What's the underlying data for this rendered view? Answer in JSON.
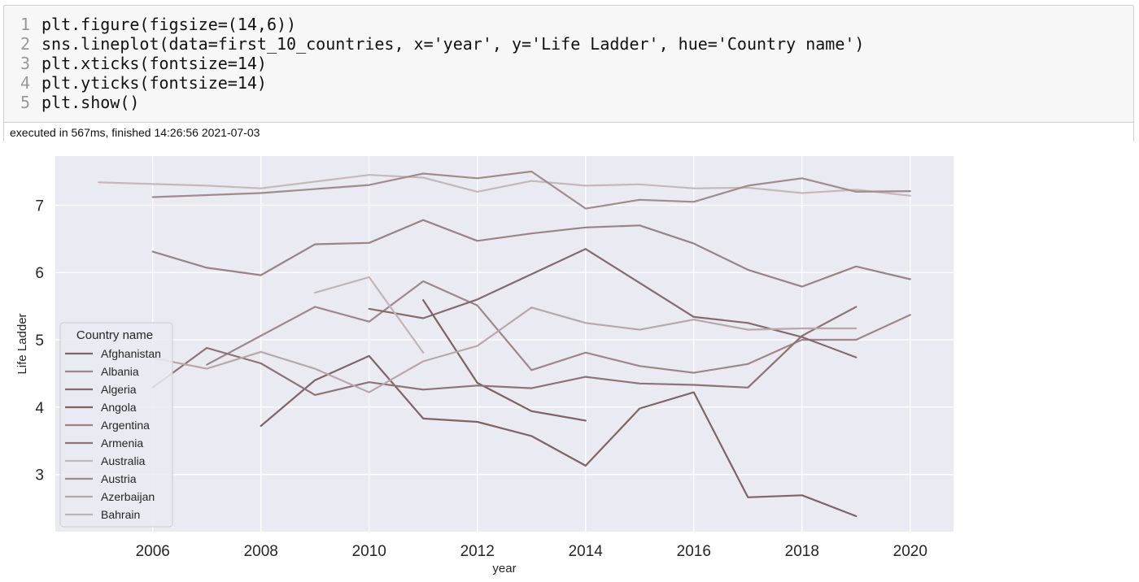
{
  "cell": {
    "code_lines": [
      {
        "num": "1",
        "text": "plt.figure(figsize=(14,6))"
      },
      {
        "num": "2",
        "text": "sns.lineplot(data=first_10_countries, x='year', y='Life Ladder', hue='Country name')"
      },
      {
        "num": "3",
        "text": "plt.xticks(fontsize=14)"
      },
      {
        "num": "4",
        "text": "plt.yticks(fontsize=14)"
      },
      {
        "num": "5",
        "text": "plt.show()"
      }
    ],
    "status": "executed in 567ms, finished 14:26:56 2021-07-03"
  },
  "chart_data": {
    "type": "line",
    "title": "",
    "xlabel": "year",
    "ylabel": "Life Ladder",
    "xlim": [
      2004.2,
      2020.8
    ],
    "ylim": [
      2.15,
      7.73
    ],
    "xticks": [
      2006,
      2008,
      2010,
      2012,
      2014,
      2016,
      2018,
      2020
    ],
    "yticks": [
      3,
      4,
      5,
      6,
      7
    ],
    "grid": true,
    "legend": {
      "title": "Country name",
      "placement": "center-left"
    },
    "series": [
      {
        "name": "Afghanistan",
        "color": "#7f6465",
        "points": [
          [
            2008,
            3.72
          ],
          [
            2009,
            4.4
          ],
          [
            2010,
            4.76
          ],
          [
            2011,
            3.83
          ],
          [
            2012,
            3.78
          ],
          [
            2013,
            3.57
          ],
          [
            2014,
            3.13
          ],
          [
            2015,
            3.98
          ],
          [
            2016,
            4.22
          ],
          [
            2017,
            2.66
          ],
          [
            2018,
            2.69
          ],
          [
            2019,
            2.38
          ]
        ]
      },
      {
        "name": "Albania",
        "color": "#9e8789",
        "points": [
          [
            2007,
            4.63
          ],
          [
            2009,
            5.49
          ],
          [
            2010,
            5.27
          ],
          [
            2011,
            5.87
          ],
          [
            2012,
            5.51
          ],
          [
            2013,
            4.55
          ],
          [
            2014,
            4.81
          ],
          [
            2015,
            4.61
          ],
          [
            2016,
            4.51
          ],
          [
            2017,
            4.64
          ],
          [
            2018,
            5.0
          ],
          [
            2019,
            5.0
          ],
          [
            2020,
            5.37
          ]
        ]
      },
      {
        "name": "Algeria",
        "color": "#856b6d",
        "points": [
          [
            2010,
            5.46
          ],
          [
            2011,
            5.32
          ],
          [
            2012,
            5.6
          ],
          [
            2014,
            6.35
          ],
          [
            2016,
            5.34
          ],
          [
            2017,
            5.25
          ],
          [
            2018,
            5.04
          ],
          [
            2019,
            4.74
          ]
        ]
      },
      {
        "name": "Angola",
        "color": "#7d6163",
        "points": [
          [
            2011,
            5.59
          ],
          [
            2012,
            4.36
          ],
          [
            2013,
            3.94
          ],
          [
            2014,
            3.8
          ]
        ]
      },
      {
        "name": "Argentina",
        "color": "#9a8385",
        "points": [
          [
            2006,
            6.31
          ],
          [
            2007,
            6.07
          ],
          [
            2008,
            5.96
          ],
          [
            2009,
            6.42
          ],
          [
            2010,
            6.44
          ],
          [
            2011,
            6.78
          ],
          [
            2012,
            6.47
          ],
          [
            2013,
            6.58
          ],
          [
            2014,
            6.67
          ],
          [
            2015,
            6.7
          ],
          [
            2016,
            6.43
          ],
          [
            2017,
            6.04
          ],
          [
            2018,
            5.79
          ],
          [
            2019,
            6.09
          ],
          [
            2020,
            5.9
          ]
        ]
      },
      {
        "name": "Armenia",
        "color": "#8c7375",
        "points": [
          [
            2006,
            4.29
          ],
          [
            2007,
            4.88
          ],
          [
            2008,
            4.65
          ],
          [
            2009,
            4.18
          ],
          [
            2010,
            4.37
          ],
          [
            2011,
            4.26
          ],
          [
            2012,
            4.32
          ],
          [
            2013,
            4.28
          ],
          [
            2014,
            4.45
          ],
          [
            2015,
            4.35
          ],
          [
            2016,
            4.33
          ],
          [
            2017,
            4.29
          ],
          [
            2018,
            5.06
          ],
          [
            2019,
            5.49
          ]
        ]
      },
      {
        "name": "Australia",
        "color": "#c6b8b9",
        "points": [
          [
            2005,
            7.34
          ],
          [
            2007,
            7.29
          ],
          [
            2008,
            7.25
          ],
          [
            2010,
            7.45
          ],
          [
            2011,
            7.41
          ],
          [
            2012,
            7.2
          ],
          [
            2013,
            7.36
          ],
          [
            2014,
            7.29
          ],
          [
            2015,
            7.31
          ],
          [
            2016,
            7.25
          ],
          [
            2017,
            7.26
          ],
          [
            2018,
            7.18
          ],
          [
            2019,
            7.23
          ],
          [
            2020,
            7.14
          ]
        ]
      },
      {
        "name": "Austria",
        "color": "#a18b8c",
        "points": [
          [
            2006,
            7.12
          ],
          [
            2008,
            7.18
          ],
          [
            2010,
            7.3
          ],
          [
            2011,
            7.47
          ],
          [
            2012,
            7.4
          ],
          [
            2013,
            7.5
          ],
          [
            2014,
            6.95
          ],
          [
            2015,
            7.08
          ],
          [
            2016,
            7.05
          ],
          [
            2017,
            7.29
          ],
          [
            2018,
            7.4
          ],
          [
            2019,
            7.2
          ],
          [
            2020,
            7.21
          ]
        ]
      },
      {
        "name": "Azerbaijan",
        "color": "#b8a7a8",
        "points": [
          [
            2006,
            4.73
          ],
          [
            2007,
            4.57
          ],
          [
            2008,
            4.82
          ],
          [
            2009,
            4.57
          ],
          [
            2010,
            4.22
          ],
          [
            2011,
            4.68
          ],
          [
            2012,
            4.91
          ],
          [
            2013,
            5.48
          ],
          [
            2014,
            5.25
          ],
          [
            2015,
            5.15
          ],
          [
            2016,
            5.3
          ],
          [
            2017,
            5.15
          ],
          [
            2018,
            5.17
          ],
          [
            2019,
            5.17
          ]
        ]
      },
      {
        "name": "Bahrain",
        "color": "#c2b4b5",
        "points": [
          [
            2009,
            5.7
          ],
          [
            2010,
            5.93
          ],
          [
            2011,
            4.81
          ]
        ]
      }
    ]
  }
}
